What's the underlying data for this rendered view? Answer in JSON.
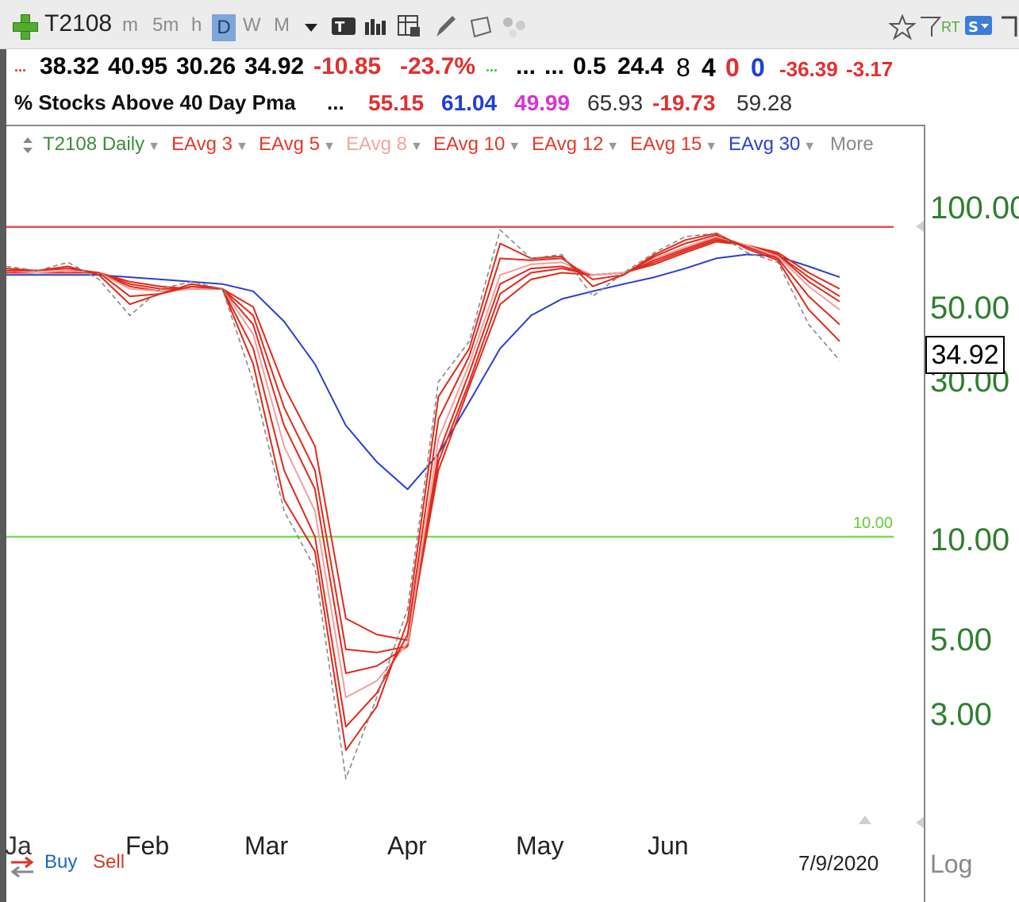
{
  "toolbar": {
    "symbol": "T2108",
    "intervals": [
      "m",
      "5m",
      "h",
      "D",
      "W",
      "M"
    ],
    "active_interval": "D",
    "right_labels": [
      "RT"
    ]
  },
  "quote_row1": {
    "values": [
      {
        "text": "38.32",
        "color": "#1a1a1a"
      },
      {
        "text": "40.95",
        "color": "#1a1a1a"
      },
      {
        "text": "30.26",
        "color": "#1a1a1a"
      },
      {
        "text": "34.92",
        "color": "#1a1a1a"
      },
      {
        "text": "-10.85",
        "color": "#e03030"
      },
      {
        "text": "-23.7%",
        "color": "#e03030"
      },
      {
        "text": "...",
        "color": "#1a1a1a"
      },
      {
        "text": "...",
        "color": "#1a1a1a"
      },
      {
        "text": "0.5",
        "color": "#1a1a1a"
      },
      {
        "text": "24.4",
        "color": "#1a1a1a"
      },
      {
        "text": "8",
        "color": "#1a1a1a"
      },
      {
        "text": "4",
        "color": "#1a1a1a"
      },
      {
        "text": "0",
        "color": "#e03030"
      },
      {
        "text": "0",
        "color": "#1f3fd6"
      },
      {
        "text": "-36.39",
        "color": "#e03030"
      },
      {
        "text": "-3.17",
        "color": "#e03030"
      }
    ]
  },
  "quote_row2": {
    "name": "% Stocks Above 40 Day Pma",
    "ellipsis": "...",
    "values": [
      {
        "text": "55.15",
        "color": "#e03030"
      },
      {
        "text": "61.04",
        "color": "#1f3fd6"
      },
      {
        "text": "49.99",
        "color": "#d633d6"
      },
      {
        "text": "65.93",
        "color": "#333333"
      },
      {
        "text": "-19.73",
        "color": "#e03030"
      },
      {
        "text": "59.28",
        "color": "#333333"
      }
    ]
  },
  "legend": {
    "items": [
      {
        "label": "T2108 Daily",
        "color": "#3f8a3f"
      },
      {
        "label": "EAvg 3",
        "color": "#e03a2a"
      },
      {
        "label": "EAvg 5",
        "color": "#e03a2a"
      },
      {
        "label": "EAvg 8",
        "color": "#f0a8a0"
      },
      {
        "label": "EAvg 10",
        "color": "#e03a2a"
      },
      {
        "label": "EAvg 12",
        "color": "#e03a2a"
      },
      {
        "label": "EAvg 15",
        "color": "#e03a2a"
      },
      {
        "label": "EAvg 30",
        "color": "#2a3fd0"
      }
    ],
    "more_label": "More"
  },
  "chart_data": {
    "type": "line",
    "title": "T2108",
    "subtitle": "% Stocks Above 40 Day Pma",
    "y_scale": "log",
    "ylim": [
      1.5,
      100
    ],
    "y_ticks": [
      "100.00",
      "50.00",
      "30.00",
      "10.00",
      "5.00",
      "3.00"
    ],
    "x_tick_labels": [
      "Feb",
      "Mar",
      "Apr",
      "May",
      "Jun"
    ],
    "reference_lines": [
      {
        "value": 90,
        "color": "#e05050"
      },
      {
        "value": 10,
        "color": "#77dd55",
        "label": "10.00"
      }
    ],
    "last_value": "34.92",
    "last_date": "7/9/2020",
    "x": [
      "Jan 1",
      "Jan 8",
      "Jan 15",
      "Jan 22",
      "Jan 29",
      "Feb 5",
      "Feb 12",
      "Feb 19",
      "Feb 26",
      "Mar 4",
      "Mar 11",
      "Mar 18",
      "Mar 25",
      "Apr 1",
      "Apr 8",
      "Apr 15",
      "Apr 22",
      "Apr 29",
      "May 6",
      "May 13",
      "May 20",
      "May 27",
      "Jun 3",
      "Jun 10",
      "Jun 17",
      "Jun 24",
      "Jul 1",
      "Jul 9"
    ],
    "series": [
      {
        "name": "T2108 Daily",
        "color": "#888888",
        "dashed": true,
        "values": [
          68,
          66,
          70,
          62,
          48,
          58,
          61,
          58,
          30,
          12,
          8,
          1.8,
          3.2,
          6,
          30,
          40,
          88,
          72,
          74,
          55,
          65,
          75,
          84,
          86,
          75,
          70,
          45,
          34.92
        ]
      },
      {
        "name": "EAvg 3",
        "color": "#e02a1a",
        "values": [
          67,
          66,
          68,
          64,
          52,
          56,
          60,
          58,
          34,
          13,
          9,
          2.2,
          3.0,
          5.5,
          27,
          38,
          80,
          72,
          73,
          59,
          64,
          74,
          82,
          86,
          77,
          71,
          50,
          40
        ]
      },
      {
        "name": "EAvg 5",
        "color": "#e02a1a",
        "values": [
          66,
          66,
          67,
          65,
          55,
          56,
          59,
          58,
          38,
          16,
          10,
          2.6,
          3.3,
          5,
          23,
          36,
          72,
          71,
          72,
          62,
          64,
          73,
          80,
          85,
          78,
          72,
          55,
          45
        ]
      },
      {
        "name": "EAvg 8",
        "color": "#f0a0a0",
        "values": [
          66,
          65,
          66,
          65,
          58,
          57,
          58,
          58,
          42,
          19,
          12,
          3.2,
          3.6,
          4.7,
          20,
          34,
          64,
          69,
          70,
          64,
          65,
          72,
          78,
          84,
          79,
          73,
          59,
          50
        ]
      },
      {
        "name": "EAvg 10",
        "color": "#e02a1a",
        "values": [
          65,
          65,
          66,
          65,
          59,
          57,
          58,
          58,
          45,
          22,
          14,
          3.8,
          4.0,
          4.6,
          18,
          32,
          60,
          67,
          68,
          64,
          65,
          71,
          77,
          83,
          79,
          74,
          61,
          53
        ]
      },
      {
        "name": "EAvg 12",
        "color": "#e02a1a",
        "values": [
          65,
          65,
          65,
          65,
          60,
          58,
          58,
          58,
          48,
          25,
          16,
          4.5,
          4.4,
          4.6,
          17,
          30,
          56,
          65,
          67,
          64,
          65,
          70,
          76,
          82,
          79,
          74,
          63,
          55
        ]
      },
      {
        "name": "EAvg 15",
        "color": "#e02a1a",
        "values": [
          65,
          65,
          65,
          65,
          61,
          59,
          58,
          58,
          51,
          29,
          19,
          5.6,
          5.0,
          4.8,
          16,
          29,
          52,
          62,
          65,
          64,
          65,
          69,
          75,
          81,
          79,
          75,
          65,
          58
        ]
      },
      {
        "name": "EAvg 30",
        "color": "#2a3fd0",
        "values": [
          64,
          64,
          64,
          64,
          63,
          62,
          61,
          60,
          57,
          46,
          34,
          22,
          17,
          14,
          18,
          26,
          38,
          48,
          54,
          57,
          60,
          63,
          67,
          72,
          74,
          73,
          68,
          63
        ]
      }
    ]
  },
  "axis": {
    "date": "7/9/2020",
    "scale_label": "Log",
    "buy": "Buy",
    "sell": "Sell",
    "partial_left_label": "Jan"
  }
}
